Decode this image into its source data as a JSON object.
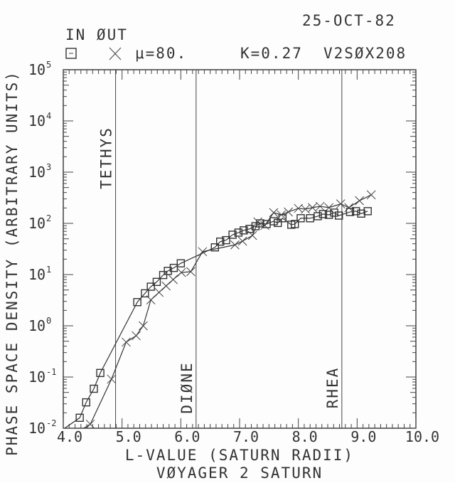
{
  "header": {
    "date": "25-OCT-82",
    "legend_title": "IN ØUT",
    "mu": "μ=80.",
    "k": "K=0.27",
    "dataset": "V2SØX208"
  },
  "chart_data": {
    "type": "line",
    "xlabel": "L-VALUE (SATURN RADII)",
    "subtitle": "VØYAGER 2 SATURN",
    "ylabel": "PHASE SPACE DENSITY (ARBITRARY UNITS)",
    "xlim": [
      4.0,
      10.0
    ],
    "ylim": [
      0.01,
      100000
    ],
    "yscale": "log",
    "x_ticks": [
      "4.0",
      "5.0",
      "6.0",
      "7.0",
      "8.0",
      "9.0",
      "10.0"
    ],
    "y_ticks": [
      {
        "base": "10",
        "exp": "5"
      },
      {
        "base": "10",
        "exp": "4"
      },
      {
        "base": "10",
        "exp": "3"
      },
      {
        "base": "10",
        "exp": "2"
      },
      {
        "base": "10",
        "exp": "1"
      },
      {
        "base": "10",
        "exp": "0"
      },
      {
        "base": "10",
        "exp": "-1"
      },
      {
        "base": "10",
        "exp": "-2"
      }
    ],
    "grid": false,
    "legend_placement": "top-left",
    "reference_lines": [
      {
        "label": "TETHYS",
        "x": 4.89
      },
      {
        "label": "DIØNE",
        "x": 6.26
      },
      {
        "label": "RHEA",
        "x": 8.74
      }
    ],
    "series": [
      {
        "name": "IN",
        "marker": "square",
        "x": [
          4.28,
          4.39,
          4.52,
          4.63,
          5.26,
          5.39,
          5.49,
          5.59,
          5.7,
          5.78,
          5.88,
          6.0,
          6.58,
          6.67,
          6.77,
          6.88,
          6.98,
          7.07,
          7.17,
          7.27,
          7.35,
          7.46,
          7.58,
          7.65,
          7.73,
          7.88,
          7.94,
          8.04,
          8.2,
          8.33,
          8.42,
          8.52,
          8.61,
          8.69,
          8.88,
          8.98,
          9.07,
          9.18
        ],
        "y": [
          0.016,
          0.032,
          0.059,
          0.12,
          2.9,
          4.3,
          5.8,
          7.2,
          9.8,
          11.8,
          13.5,
          16.6,
          34,
          44,
          47,
          60,
          66,
          73,
          78,
          88,
          100,
          97,
          110,
          102,
          126,
          94,
          97,
          126,
          126,
          138,
          152,
          147,
          162,
          142,
          167,
          173,
          155,
          173
        ]
      },
      {
        "name": "OUT",
        "marker": "x",
        "x": [
          4.46,
          4.82,
          5.07,
          5.24,
          5.36,
          5.49,
          5.63,
          5.75,
          5.87,
          6.01,
          6.17,
          6.37,
          6.92,
          7.05,
          7.22,
          7.31,
          7.43,
          7.58,
          7.71,
          7.83,
          8.0,
          8.12,
          8.24,
          8.37,
          8.52,
          8.72,
          8.86,
          9.04,
          9.24
        ],
        "y": [
          0.012,
          0.091,
          0.48,
          0.64,
          1.0,
          3.2,
          4.5,
          6.0,
          8.0,
          11,
          11.4,
          28,
          38,
          45,
          58,
          107,
          91,
          162,
          147,
          167,
          196,
          190,
          203,
          215,
          203,
          240,
          203,
          277,
          361
        ]
      }
    ]
  }
}
